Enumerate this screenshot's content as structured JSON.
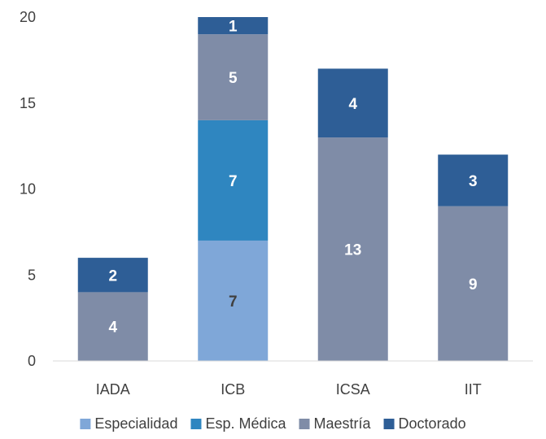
{
  "chart_data": {
    "type": "bar",
    "stacked": true,
    "categories": [
      "IADA",
      "ICB",
      "ICSA",
      "IIT"
    ],
    "series": [
      {
        "name": "Especialidad",
        "color": "#7fa7d8",
        "values": [
          0,
          7,
          0,
          0
        ],
        "label_color": "#404040"
      },
      {
        "name": "Esp. Médica",
        "color": "#2f86c0",
        "values": [
          0,
          7,
          0,
          0
        ],
        "label_color": "#ffffff"
      },
      {
        "name": "Maestría",
        "color": "#7f8ca7",
        "values": [
          4,
          5,
          13,
          9
        ],
        "label_color": "#ffffff"
      },
      {
        "name": "Doctorado",
        "color": "#2e5e96",
        "values": [
          2,
          1,
          4,
          3
        ],
        "label_color": "#ffffff"
      }
    ],
    "ylim": [
      0,
      20
    ],
    "yticks": [
      0,
      5,
      10,
      15,
      20
    ],
    "grid": false,
    "legend": "bottom"
  }
}
